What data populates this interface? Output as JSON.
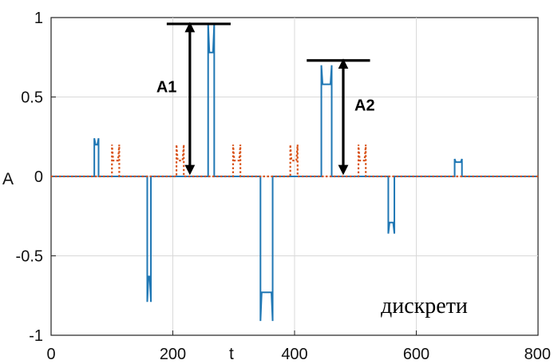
{
  "chart_data": {
    "type": "line",
    "title": "",
    "xlabel": "t",
    "ylabel": "A",
    "xlim": [
      0,
      800
    ],
    "ylim": [
      -1,
      1
    ],
    "x_ticks": [
      0,
      200,
      400,
      600,
      800
    ],
    "y_ticks": [
      -1,
      -0.5,
      0,
      0.5,
      1
    ],
    "x_tick_labels": [
      "0",
      "200",
      "400",
      "600",
      "800"
    ],
    "y_tick_labels": [
      "-1",
      "-0.5",
      "0",
      "0.5",
      "1"
    ],
    "grid": true,
    "series": [
      {
        "style": "solid",
        "color": "#1f77b4",
        "pulses": [
          {
            "start": 71,
            "end": 78,
            "value": 0.2,
            "peak": 0.24
          },
          {
            "start": 158,
            "end": 164,
            "value": -0.63,
            "peak": -0.79
          },
          {
            "start": 258,
            "end": 268,
            "value": 0.78,
            "peak": 0.96
          },
          {
            "start": 344,
            "end": 364,
            "value": -0.73,
            "peak": -0.91
          },
          {
            "start": 444,
            "end": 461,
            "value": 0.58,
            "peak": 0.7
          },
          {
            "start": 554,
            "end": 564,
            "value": -0.29,
            "peak": -0.36
          },
          {
            "start": 663,
            "end": 675,
            "value": 0.09,
            "peak": 0.11
          }
        ]
      },
      {
        "style": "dotted",
        "color": "#d95319",
        "pulses": [
          {
            "start": 100,
            "end": 112,
            "value": 0.1,
            "peak": 0.2
          },
          {
            "start": 206,
            "end": 218,
            "value": 0.1,
            "peak": 0.2
          },
          {
            "start": 299,
            "end": 311,
            "value": 0.1,
            "peak": 0.2
          },
          {
            "start": 393,
            "end": 405,
            "value": 0.1,
            "peak": 0.2
          },
          {
            "start": 505,
            "end": 517,
            "value": 0.1,
            "peak": 0.2
          }
        ]
      }
    ],
    "annotations": [
      {
        "text": "A1",
        "x": 228,
        "ref_line": {
          "x1": 190,
          "x2": 295,
          "y": 0.96
        },
        "arrow_from": 0.96,
        "arrow_to": 0.02
      },
      {
        "text": "A2",
        "x": 480,
        "ref_line": {
          "x1": 420,
          "x2": 524,
          "y": 0.73
        },
        "arrow_from": 0.73,
        "arrow_to": 0.02
      }
    ],
    "note": "дискрети"
  }
}
